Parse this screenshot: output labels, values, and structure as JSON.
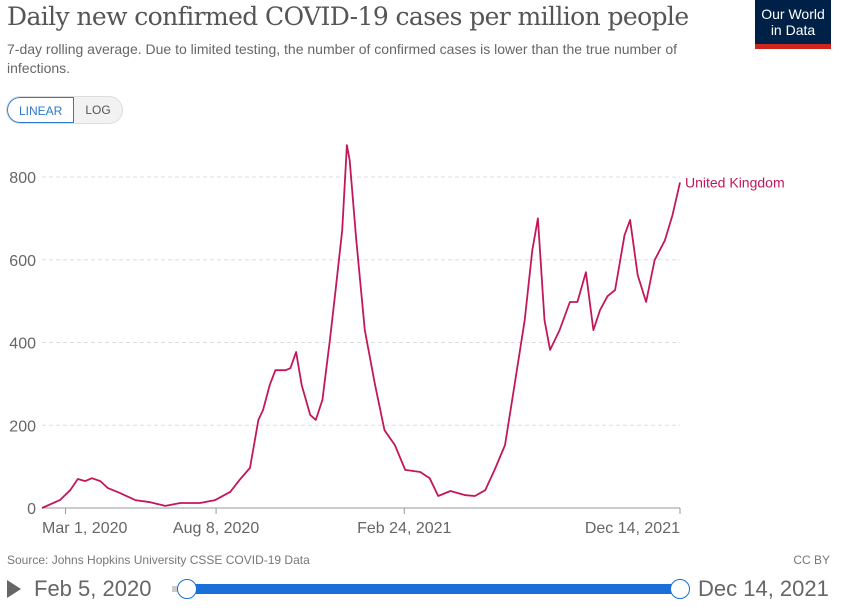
{
  "title": "Daily new confirmed COVID-19 cases per million people",
  "subtitle": "7-day rolling average. Due to limited testing, the number of confirmed cases is lower than the true number of infections.",
  "logo": {
    "line1": "Our World",
    "line2": "in Data",
    "bg": "#002147",
    "accent": "#ce261e"
  },
  "scale_toggle": {
    "linear": "LINEAR",
    "log": "LOG",
    "selected": "LINEAR"
  },
  "source": "Source: Johns Hopkins University CSSE COVID-19 Data",
  "license": "CC BY",
  "timeline": {
    "start": "Feb 5, 2020",
    "end": "Dec 14, 2021",
    "play_icon": "play-icon"
  },
  "chart_data": {
    "type": "line",
    "title": "Daily new confirmed COVID-19 cases per million people",
    "xlim": [
      "2020-02-05",
      "2021-12-14"
    ],
    "ylim": [
      0,
      880
    ],
    "grid": true,
    "yticks": [
      0,
      200,
      400,
      600,
      800
    ],
    "xticks": [
      {
        "date": "2020-03-01",
        "label": "Mar 1, 2020"
      },
      {
        "date": "2020-08-08",
        "label": "Aug 8, 2020"
      },
      {
        "date": "2021-02-24",
        "label": "Feb 24, 2021"
      },
      {
        "date": "2021-12-14",
        "label": "Dec 14, 2021"
      }
    ],
    "series": [
      {
        "name": "United Kingdom",
        "color": "#c2185b",
        "points": [
          [
            "2020-02-05",
            0
          ],
          [
            "2020-02-24",
            19
          ],
          [
            "2020-03-06",
            43
          ],
          [
            "2020-03-14",
            70
          ],
          [
            "2020-03-22",
            65
          ],
          [
            "2020-03-29",
            72
          ],
          [
            "2020-04-07",
            65
          ],
          [
            "2020-04-15",
            48
          ],
          [
            "2020-04-28",
            36
          ],
          [
            "2020-05-14",
            19
          ],
          [
            "2020-05-30",
            14
          ],
          [
            "2020-06-15",
            5
          ],
          [
            "2020-07-01",
            12
          ],
          [
            "2020-07-22",
            12
          ],
          [
            "2020-08-07",
            19
          ],
          [
            "2020-08-23",
            39
          ],
          [
            "2020-09-02",
            68
          ],
          [
            "2020-09-13",
            97
          ],
          [
            "2020-09-22",
            213
          ],
          [
            "2020-09-27",
            237
          ],
          [
            "2020-10-04",
            297
          ],
          [
            "2020-10-10",
            333
          ],
          [
            "2020-10-21",
            333
          ],
          [
            "2020-10-26",
            338
          ],
          [
            "2020-11-01",
            377
          ],
          [
            "2020-11-07",
            297
          ],
          [
            "2020-11-16",
            225
          ],
          [
            "2020-11-22",
            213
          ],
          [
            "2020-11-29",
            261
          ],
          [
            "2020-12-07",
            406
          ],
          [
            "2020-12-13",
            527
          ],
          [
            "2020-12-20",
            671
          ],
          [
            "2020-12-25",
            877
          ],
          [
            "2020-12-28",
            840
          ],
          [
            "2021-01-04",
            647
          ],
          [
            "2021-01-13",
            430
          ],
          [
            "2021-01-24",
            297
          ],
          [
            "2021-02-03",
            188
          ],
          [
            "2021-02-14",
            152
          ],
          [
            "2021-02-25",
            92
          ],
          [
            "2021-03-13",
            87
          ],
          [
            "2021-03-23",
            72
          ],
          [
            "2021-04-01",
            29
          ],
          [
            "2021-04-14",
            41
          ],
          [
            "2021-04-30",
            31
          ],
          [
            "2021-05-10",
            29
          ],
          [
            "2021-05-21",
            43
          ],
          [
            "2021-05-31",
            92
          ],
          [
            "2021-06-11",
            152
          ],
          [
            "2021-06-22",
            309
          ],
          [
            "2021-07-02",
            454
          ],
          [
            "2021-07-10",
            623
          ],
          [
            "2021-07-16",
            700
          ],
          [
            "2021-07-23",
            454
          ],
          [
            "2021-07-29",
            382
          ],
          [
            "2021-08-08",
            430
          ],
          [
            "2021-08-19",
            498
          ],
          [
            "2021-08-27",
            498
          ],
          [
            "2021-09-05",
            570
          ],
          [
            "2021-09-13",
            430
          ],
          [
            "2021-09-20",
            478
          ],
          [
            "2021-09-28",
            512
          ],
          [
            "2021-10-06",
            527
          ],
          [
            "2021-10-16",
            659
          ],
          [
            "2021-10-22",
            696
          ],
          [
            "2021-10-30",
            563
          ],
          [
            "2021-11-08",
            498
          ],
          [
            "2021-11-17",
            599
          ],
          [
            "2021-11-28",
            647
          ],
          [
            "2021-12-06",
            708
          ],
          [
            "2021-12-14",
            787
          ]
        ]
      }
    ]
  }
}
